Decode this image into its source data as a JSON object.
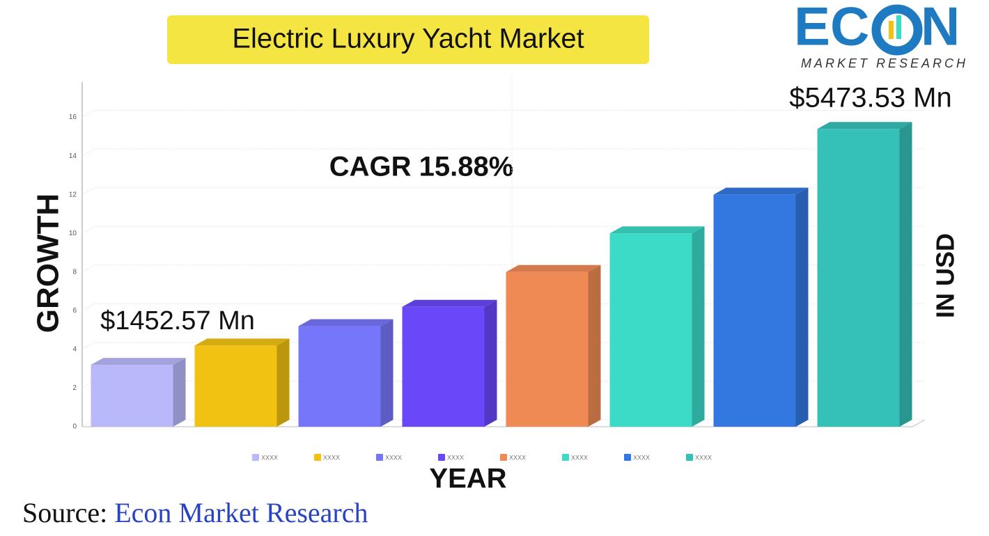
{
  "chart_data": {
    "type": "bar3d",
    "title": "Electric Luxury Yacht Market",
    "logo": {
      "left": "EC",
      "right": "N",
      "tagline": "MARKET RESEARCH"
    },
    "annotations": {
      "end_value": "$5473.53 Mn",
      "start_value": "$1452.57 Mn",
      "cagr": "CAGR 15.88%"
    },
    "y_label": "GROWTH",
    "x_label": "YEAR",
    "y2_label": "IN USD",
    "source": {
      "label": "Source:",
      "name": "Econ Market Research"
    },
    "categories": [
      "XXXX",
      "XXXX",
      "XXXX",
      "XXXX",
      "XXXX",
      "XXXX",
      "XXXX",
      "XXXX"
    ],
    "values": [
      3.2,
      4.2,
      5.2,
      6.2,
      8,
      10,
      12,
      15.4
    ],
    "colors": [
      "#b8b8fb",
      "#f1c212",
      "#7676fa",
      "#6a48fa",
      "#f08a55",
      "#3bdbc8",
      "#3278e0",
      "#35c0b8"
    ],
    "ylim": [
      0,
      18
    ],
    "yticks": [
      0,
      2,
      4,
      6,
      8,
      10,
      12,
      14,
      16
    ],
    "grid": true
  }
}
